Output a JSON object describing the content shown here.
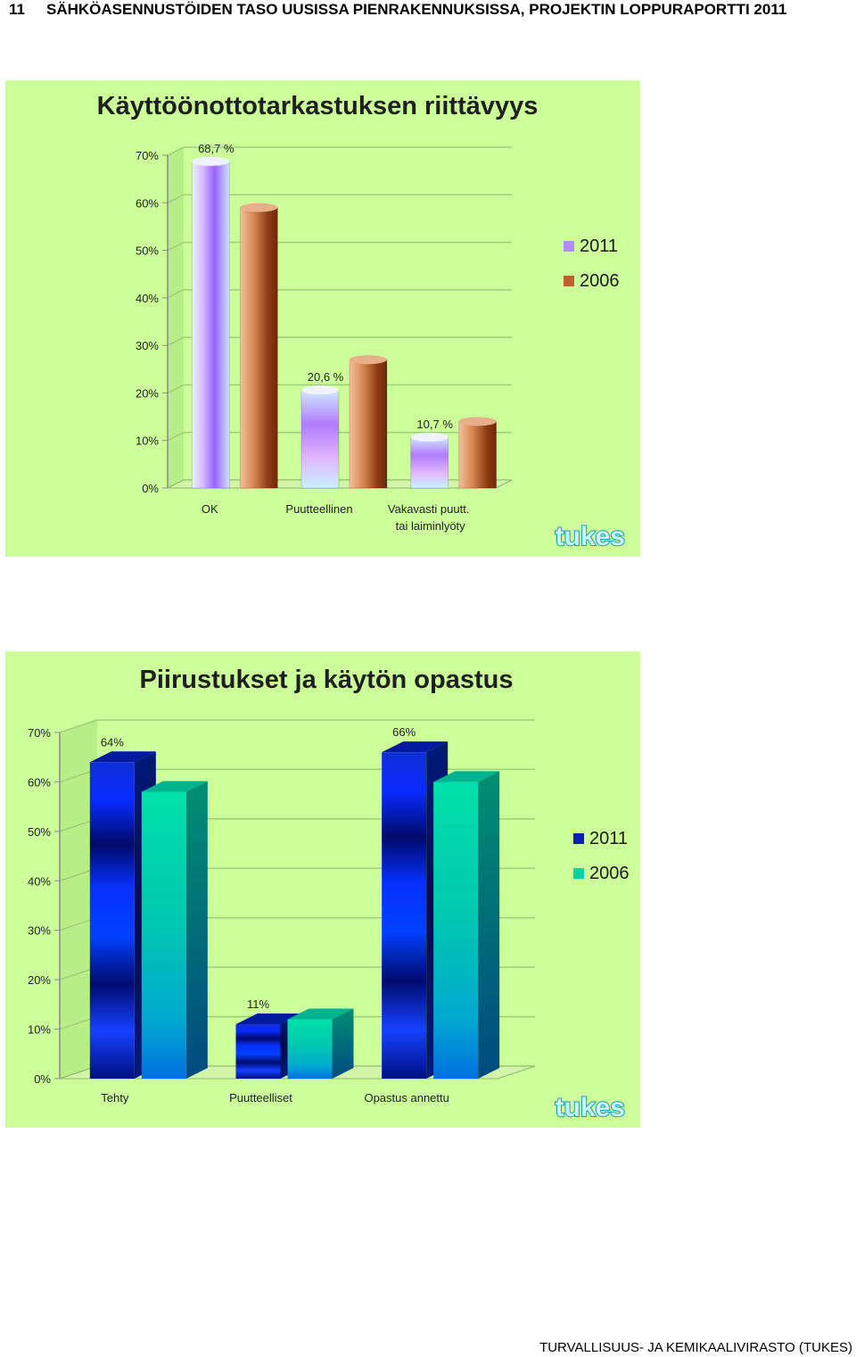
{
  "header": {
    "page_number": "11",
    "title": "SÄHKÖASENNUSTÖIDEN TASO UUSISSA PIENRAKENNUKSISSA, PROJEKTIN LOPPURAPORTTI  2011"
  },
  "footer": {
    "text": "TURVALLISUUS- JA KEMIKAALIVIRASTO (TUKES)"
  },
  "colors": {
    "panel_bg": "#ccff99",
    "series_2011_chart1": "#b08cff",
    "series_2006_chart1": "#c0602f",
    "series_2011_chart2": "#0a1fb8",
    "series_2006_chart2": "#00d4a8"
  },
  "chart_data": [
    {
      "type": "bar",
      "title": "Käyttöönottotarkastuksen  riittävyys",
      "xlabel": "",
      "ylabel": "",
      "categories": [
        [
          "OK"
        ],
        [
          "Puutteellinen"
        ],
        [
          "Vakavasti puutt.",
          "tai laiminlyöty"
        ]
      ],
      "series": [
        {
          "name": "2011",
          "values": [
            68.7,
            20.6,
            10.7
          ],
          "labels": [
            "68,7 %",
            "20,6 %",
            "10,7 %"
          ]
        },
        {
          "name": "2006",
          "values": [
            59,
            27,
            14
          ],
          "labels": [
            "",
            "",
            ""
          ]
        }
      ],
      "yticks": [
        "0%",
        "10%",
        "20%",
        "30%",
        "40%",
        "50%",
        "60%",
        "70%"
      ],
      "ylim": [
        0,
        70
      ],
      "grid": true,
      "legend": "right",
      "logo": "tukes"
    },
    {
      "type": "bar",
      "title": "Piirustukset ja käytön opastus",
      "xlabel": "",
      "ylabel": "",
      "categories": [
        [
          "Tehty"
        ],
        [
          "Puutteelliset"
        ],
        [
          "Opastus annettu"
        ]
      ],
      "series": [
        {
          "name": "2011",
          "values": [
            64,
            11,
            66
          ],
          "labels": [
            "64%",
            "11%",
            "66%"
          ]
        },
        {
          "name": "2006",
          "values": [
            58,
            12,
            60
          ],
          "labels": [
            "",
            "",
            ""
          ]
        }
      ],
      "yticks": [
        "0%",
        "10%",
        "20%",
        "30%",
        "40%",
        "50%",
        "60%",
        "70%"
      ],
      "ylim": [
        0,
        70
      ],
      "grid": true,
      "legend": "right",
      "logo": "tukes"
    }
  ]
}
